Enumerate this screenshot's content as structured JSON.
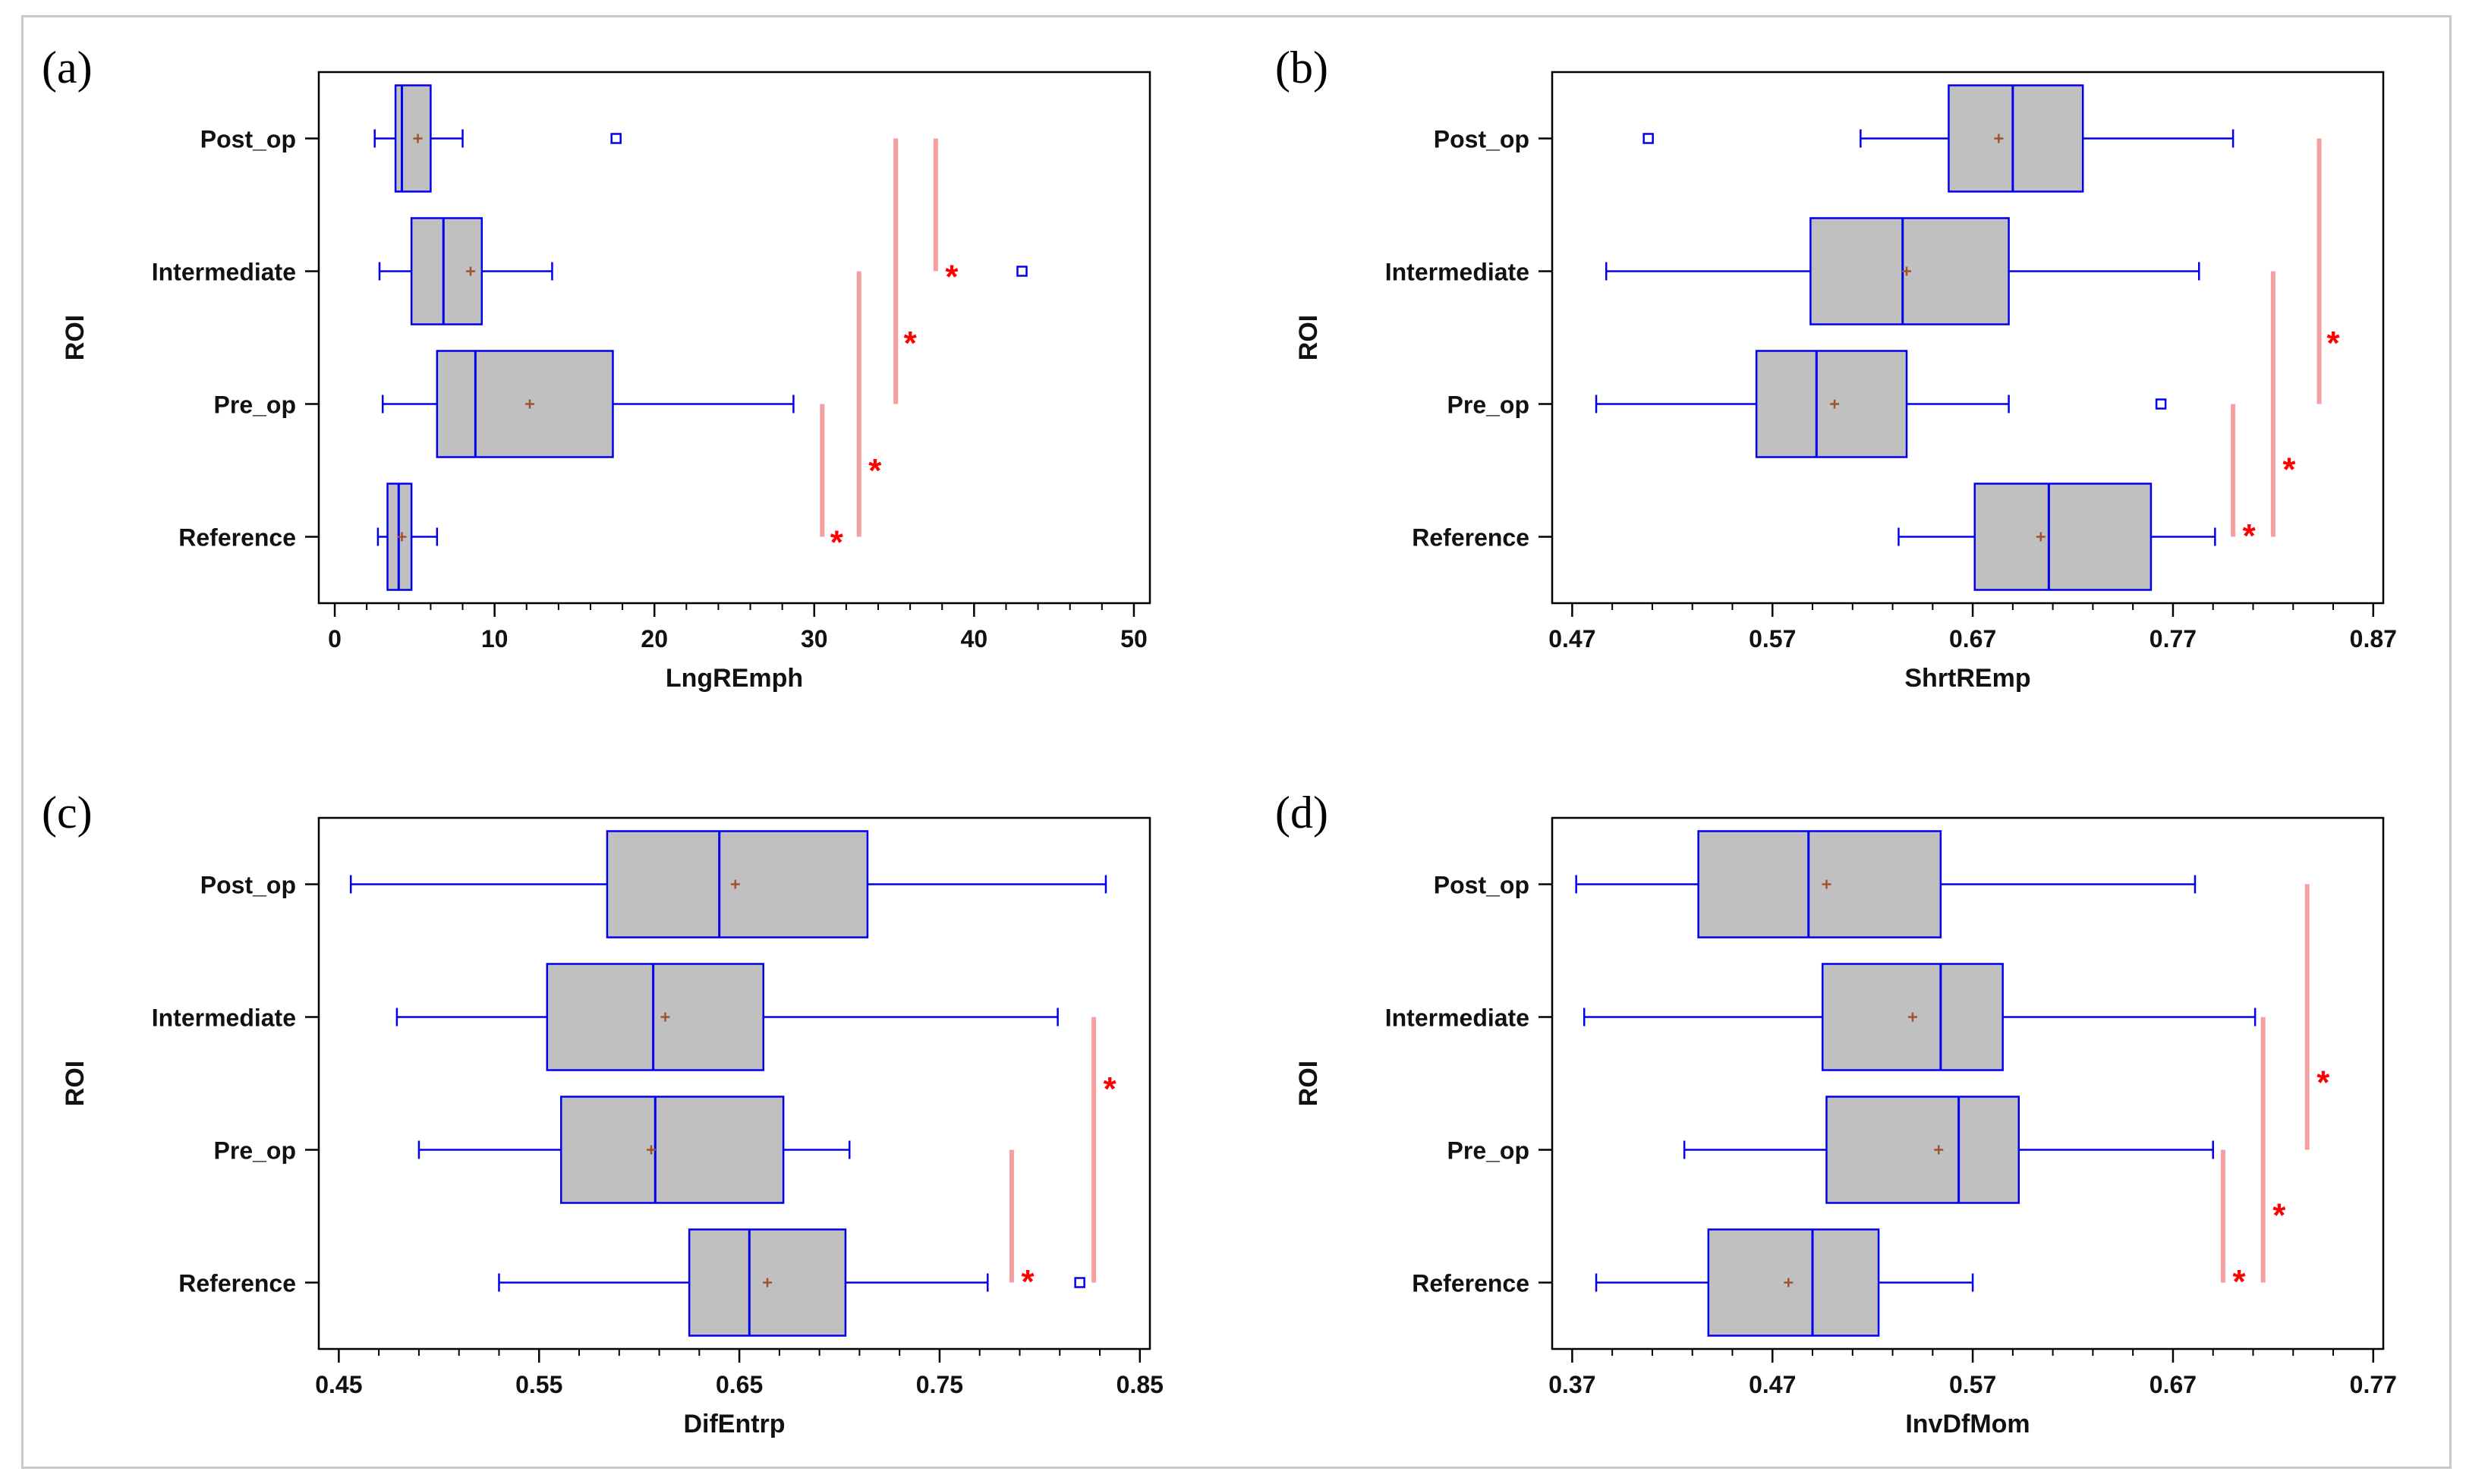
{
  "panels": [
    {
      "letter": "(a)"
    },
    {
      "letter": "(b)"
    },
    {
      "letter": "(c)"
    },
    {
      "letter": "(d)"
    }
  ],
  "colors": {
    "box_fill": "#c0c0c0",
    "box_stroke": "#0000ee",
    "mean_marker": "#a0522d",
    "significance_bar": "#f4a0a0",
    "significance_star": "#ff0000",
    "axis": "#000000"
  },
  "chart_data": [
    {
      "type": "boxplot",
      "panel": "(a)",
      "xlabel": "LngREmph",
      "ylabel": "ROI",
      "xlim": [
        -1,
        51
      ],
      "xticks": [
        0,
        10,
        20,
        30,
        40,
        50
      ],
      "xtick_labels": [
        "0",
        "10",
        "20",
        "30",
        "40",
        "50"
      ],
      "categories": [
        "Post_op",
        "Intermediate",
        "Pre_op",
        "Reference"
      ],
      "boxes": [
        {
          "name": "Post_op",
          "whisker_low": 2.5,
          "q1": 3.8,
          "median": 4.2,
          "q3": 6.0,
          "whisker_high": 8.0,
          "mean": 5.2,
          "outliers": [
            17.6
          ]
        },
        {
          "name": "Intermediate",
          "whisker_low": 2.8,
          "q1": 4.8,
          "median": 6.8,
          "q3": 9.2,
          "whisker_high": 13.6,
          "mean": 8.5,
          "outliers": [
            43.0
          ]
        },
        {
          "name": "Pre_op",
          "whisker_low": 3.0,
          "q1": 6.4,
          "median": 8.8,
          "q3": 17.4,
          "whisker_high": 28.7,
          "mean": 12.2,
          "outliers": []
        },
        {
          "name": "Reference",
          "whisker_low": 2.7,
          "q1": 3.3,
          "median": 4.0,
          "q3": 4.8,
          "whisker_high": 6.4,
          "mean": 4.2,
          "outliers": []
        }
      ],
      "significance": [
        {
          "x": 30.5,
          "from": "Reference",
          "to": "Pre_op",
          "star_x": 31.4,
          "star_at": 3.5
        },
        {
          "x": 32.8,
          "from": "Reference",
          "to": "Intermediate",
          "star_x": 33.8,
          "star_at": 2.96
        },
        {
          "x": 35.1,
          "from": "Pre_op",
          "to": "Post_op",
          "star_x": 36.0,
          "star_at": 2.0
        },
        {
          "x": 37.6,
          "from": "Intermediate",
          "to": "Post_op",
          "star_x": 38.6,
          "star_at": 1.5
        }
      ],
      "significance_label": "*"
    },
    {
      "type": "boxplot",
      "panel": "(b)",
      "xlabel": "ShrtREmp",
      "ylabel": "ROI",
      "xlim": [
        0.46,
        0.875
      ],
      "xticks": [
        0.47,
        0.57,
        0.67,
        0.77,
        0.87
      ],
      "xtick_labels": [
        "0.47",
        "0.57",
        "0.67",
        "0.77",
        "0.87"
      ],
      "categories": [
        "Post_op",
        "Intermediate",
        "Pre_op",
        "Reference"
      ],
      "boxes": [
        {
          "name": "Post_op",
          "whisker_low": 0.614,
          "q1": 0.658,
          "median": 0.69,
          "q3": 0.725,
          "whisker_high": 0.8,
          "mean": 0.683,
          "outliers": [
            0.508
          ]
        },
        {
          "name": "Intermediate",
          "whisker_low": 0.487,
          "q1": 0.589,
          "median": 0.635,
          "q3": 0.688,
          "whisker_high": 0.783,
          "mean": 0.637,
          "outliers": []
        },
        {
          "name": "Pre_op",
          "whisker_low": 0.482,
          "q1": 0.562,
          "median": 0.592,
          "q3": 0.637,
          "whisker_high": 0.688,
          "mean": 0.601,
          "outliers": [
            0.764
          ]
        },
        {
          "name": "Reference",
          "whisker_low": 0.633,
          "q1": 0.671,
          "median": 0.708,
          "q3": 0.759,
          "whisker_high": 0.791,
          "mean": 0.704,
          "outliers": []
        }
      ],
      "significance": [
        {
          "x": 0.8,
          "from": "Reference",
          "to": "Pre_op",
          "star_x": 0.808,
          "star_at": 3.45
        },
        {
          "x": 0.82,
          "from": "Reference",
          "to": "Intermediate",
          "star_x": 0.828,
          "star_at": 2.95
        },
        {
          "x": 0.843,
          "from": "Pre_op",
          "to": "Post_op",
          "star_x": 0.85,
          "star_at": 2.0
        },
        {
          "x": 0.843,
          "from": "Pre_op",
          "to": "Post_op",
          "star_x": 0.85,
          "star_at": 2.0,
          "hidden": true
        }
      ],
      "significance_label": "*"
    },
    {
      "type": "boxplot",
      "panel": "(c)",
      "xlabel": "DifEntrp",
      "ylabel": "ROI",
      "xlim": [
        0.44,
        0.855
      ],
      "xticks": [
        0.45,
        0.55,
        0.65,
        0.75,
        0.85
      ],
      "xtick_labels": [
        "0.45",
        "0.55",
        "0.65",
        "0.75",
        "0.85"
      ],
      "categories": [
        "Post_op",
        "Intermediate",
        "Pre_op",
        "Reference"
      ],
      "boxes": [
        {
          "name": "Post_op",
          "whisker_low": 0.456,
          "q1": 0.584,
          "median": 0.64,
          "q3": 0.714,
          "whisker_high": 0.833,
          "mean": 0.648,
          "outliers": []
        },
        {
          "name": "Intermediate",
          "whisker_low": 0.479,
          "q1": 0.554,
          "median": 0.607,
          "q3": 0.662,
          "whisker_high": 0.809,
          "mean": 0.613,
          "outliers": []
        },
        {
          "name": "Pre_op",
          "whisker_low": 0.49,
          "q1": 0.561,
          "median": 0.608,
          "q3": 0.672,
          "whisker_high": 0.705,
          "mean": 0.606,
          "outliers": []
        },
        {
          "name": "Reference",
          "whisker_low": 0.53,
          "q1": 0.625,
          "median": 0.655,
          "q3": 0.703,
          "whisker_high": 0.774,
          "mean": 0.664,
          "outliers": [
            0.82
          ]
        }
      ],
      "significance": [
        {
          "x": 0.786,
          "from": "Reference",
          "to": "Pre_op",
          "star_x": 0.794,
          "star_at": 3.45
        },
        {
          "x": 0.827,
          "from": "Reference",
          "to": "Intermediate",
          "star_x": 0.835,
          "star_at": 2.0
        }
      ],
      "significance_label": "*"
    },
    {
      "type": "boxplot",
      "panel": "(d)",
      "xlabel": "InvDfMom",
      "ylabel": "ROI",
      "xlim": [
        0.36,
        0.775
      ],
      "xticks": [
        0.37,
        0.47,
        0.57,
        0.67,
        0.77
      ],
      "xtick_labels": [
        "0.37",
        "0.47",
        "0.57",
        "0.67",
        "0.77"
      ],
      "categories": [
        "Post_op",
        "Intermediate",
        "Pre_op",
        "Reference"
      ],
      "boxes": [
        {
          "name": "Post_op",
          "whisker_low": 0.372,
          "q1": 0.433,
          "median": 0.488,
          "q3": 0.554,
          "whisker_high": 0.681,
          "mean": 0.497,
          "outliers": []
        },
        {
          "name": "Intermediate",
          "whisker_low": 0.376,
          "q1": 0.495,
          "median": 0.554,
          "q3": 0.585,
          "whisker_high": 0.711,
          "mean": 0.54,
          "outliers": []
        },
        {
          "name": "Pre_op",
          "whisker_low": 0.426,
          "q1": 0.497,
          "median": 0.563,
          "q3": 0.593,
          "whisker_high": 0.69,
          "mean": 0.553,
          "outliers": []
        },
        {
          "name": "Reference",
          "whisker_low": 0.382,
          "q1": 0.438,
          "median": 0.49,
          "q3": 0.523,
          "whisker_high": 0.57,
          "mean": 0.478,
          "outliers": []
        }
      ],
      "significance": [
        {
          "x": 0.695,
          "from": "Reference",
          "to": "Pre_op",
          "star_x": 0.703,
          "star_at": 3.45
        },
        {
          "x": 0.715,
          "from": "Reference",
          "to": "Intermediate",
          "star_x": 0.723,
          "star_at": 2.95
        },
        {
          "x": 0.737,
          "from": "Pre_op",
          "to": "Post_op",
          "star_x": 0.745,
          "star_at": 1.95
        }
      ],
      "significance_label": "*"
    }
  ]
}
